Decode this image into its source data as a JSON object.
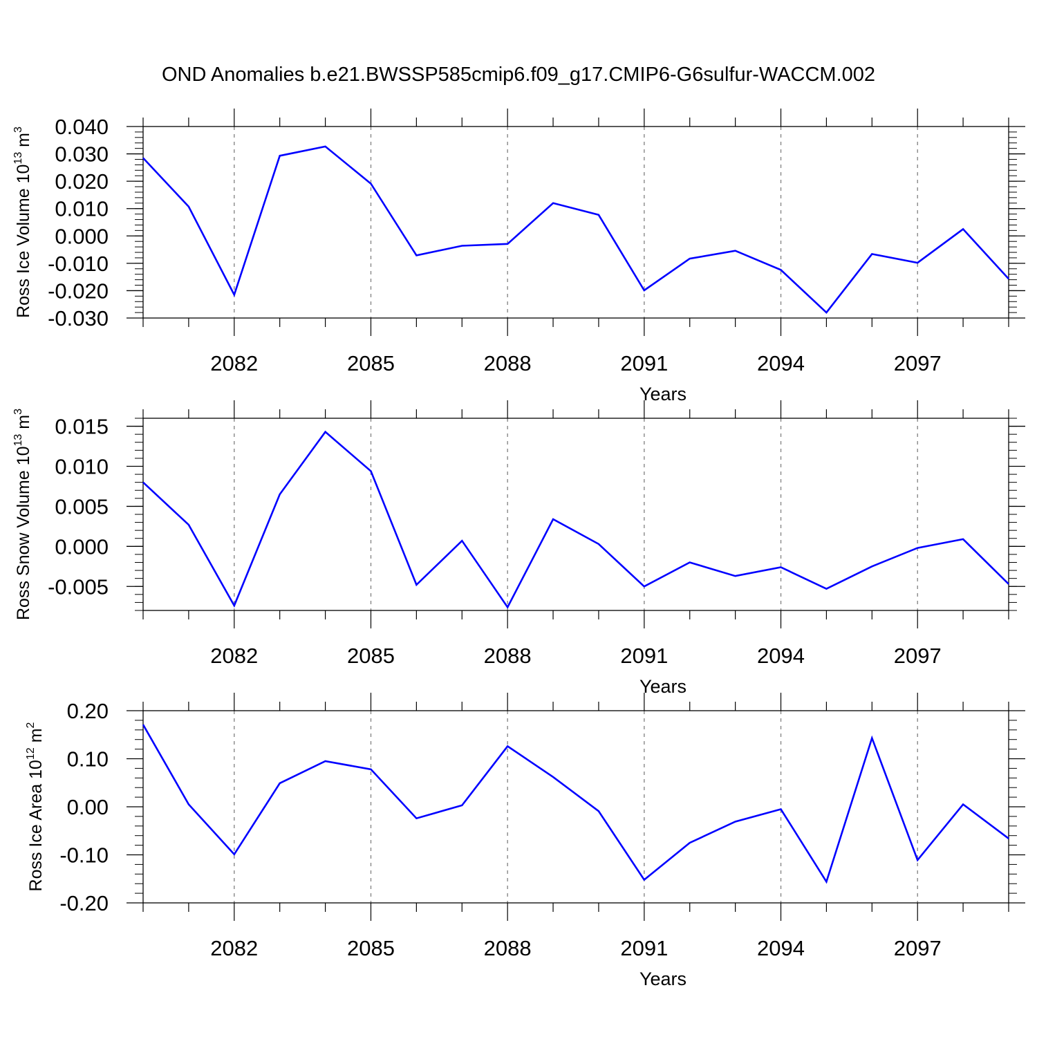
{
  "figure": {
    "title": "OND Anomalies b.e21.BWSSP585cmip6.f09_g17.CMIP6-G6sulfur-WACCM.002"
  },
  "chart_data": [
    {
      "type": "line",
      "title": "",
      "xlabel": "Years",
      "ylabel": "Ross Ice Volume 10",
      "ylabel_sup": "13",
      "ylabel_unit": " m",
      "ylabel_unit_sup": "3",
      "xlim": [
        2080,
        2099
      ],
      "ylim": [
        -0.03,
        0.04
      ],
      "yticks": [
        -0.03,
        -0.02,
        -0.01,
        0.0,
        0.01,
        0.02,
        0.03,
        0.04
      ],
      "ytick_labels": [
        "-0.030",
        "-0.020",
        "-0.010",
        "0.000",
        "0.010",
        "0.020",
        "0.030",
        "0.040"
      ],
      "xticks": [
        2082,
        2085,
        2088,
        2091,
        2094,
        2097
      ],
      "xtick_labels": [
        "2082",
        "2085",
        "2088",
        "2091",
        "2094",
        "2097"
      ],
      "grid": "vertical dashed at labeled years",
      "series": [
        {
          "color": "#0000ff",
          "x": [
            2080,
            2081,
            2082,
            2083,
            2084,
            2085,
            2086,
            2087,
            2088,
            2089,
            2090,
            2091,
            2092,
            2093,
            2094,
            2095,
            2096,
            2097,
            2098,
            2099
          ],
          "values": [
            0.0285,
            0.0107,
            -0.0215,
            0.0293,
            0.0327,
            0.0191,
            -0.0071,
            -0.0036,
            -0.0029,
            0.012,
            0.0077,
            -0.0199,
            -0.0083,
            -0.0054,
            -0.0124,
            -0.028,
            -0.0066,
            -0.0098,
            0.0025,
            -0.0157
          ]
        }
      ]
    },
    {
      "type": "line",
      "title": "",
      "xlabel": "Years",
      "ylabel": "Ross Snow Volume 10",
      "ylabel_sup": "13",
      "ylabel_unit": " m",
      "ylabel_unit_sup": "3",
      "xlim": [
        2080,
        2099
      ],
      "ylim": [
        -0.008,
        0.016
      ],
      "yticks": [
        -0.005,
        0.0,
        0.005,
        0.01,
        0.015
      ],
      "ytick_labels": [
        "-0.005",
        "0.000",
        "0.005",
        "0.010",
        "0.015"
      ],
      "xticks": [
        2082,
        2085,
        2088,
        2091,
        2094,
        2097
      ],
      "xtick_labels": [
        "2082",
        "2085",
        "2088",
        "2091",
        "2094",
        "2097"
      ],
      "grid": "vertical dashed at labeled years",
      "series": [
        {
          "color": "#0000ff",
          "x": [
            2080,
            2081,
            2082,
            2083,
            2084,
            2085,
            2086,
            2087,
            2088,
            2089,
            2090,
            2091,
            2092,
            2093,
            2094,
            2095,
            2096,
            2097,
            2098,
            2099
          ],
          "values": [
            0.008,
            0.0027,
            -0.0074,
            0.0065,
            0.0143,
            0.0094,
            -0.0048,
            0.0007,
            -0.0076,
            0.0034,
            0.0003,
            -0.005,
            -0.002,
            -0.0037,
            -0.0026,
            -0.0053,
            -0.0025,
            -0.0002,
            0.0009,
            -0.0047
          ]
        }
      ]
    },
    {
      "type": "line",
      "title": "",
      "xlabel": "Years",
      "ylabel": "Ross Ice Area 10",
      "ylabel_sup": "12",
      "ylabel_unit": " m",
      "ylabel_unit_sup": "2",
      "xlim": [
        2080,
        2099
      ],
      "ylim": [
        -0.2,
        0.2
      ],
      "yticks": [
        -0.2,
        -0.1,
        0.0,
        0.1,
        0.2
      ],
      "ytick_labels": [
        "-0.20",
        "-0.10",
        "0.00",
        "0.10",
        "0.20"
      ],
      "xticks": [
        2082,
        2085,
        2088,
        2091,
        2094,
        2097
      ],
      "xtick_labels": [
        "2082",
        "2085",
        "2088",
        "2091",
        "2094",
        "2097"
      ],
      "grid": "vertical dashed at labeled years",
      "series": [
        {
          "color": "#0000ff",
          "x": [
            2080,
            2081,
            2082,
            2083,
            2084,
            2085,
            2086,
            2087,
            2088,
            2089,
            2090,
            2091,
            2092,
            2093,
            2094,
            2095,
            2096,
            2097,
            2098,
            2099
          ],
          "values": [
            0.171,
            0.005,
            -0.099,
            0.049,
            0.095,
            0.078,
            -0.024,
            0.003,
            0.126,
            0.062,
            -0.009,
            -0.152,
            -0.075,
            -0.031,
            -0.005,
            -0.156,
            0.143,
            -0.111,
            0.005,
            -0.066
          ]
        }
      ]
    }
  ]
}
